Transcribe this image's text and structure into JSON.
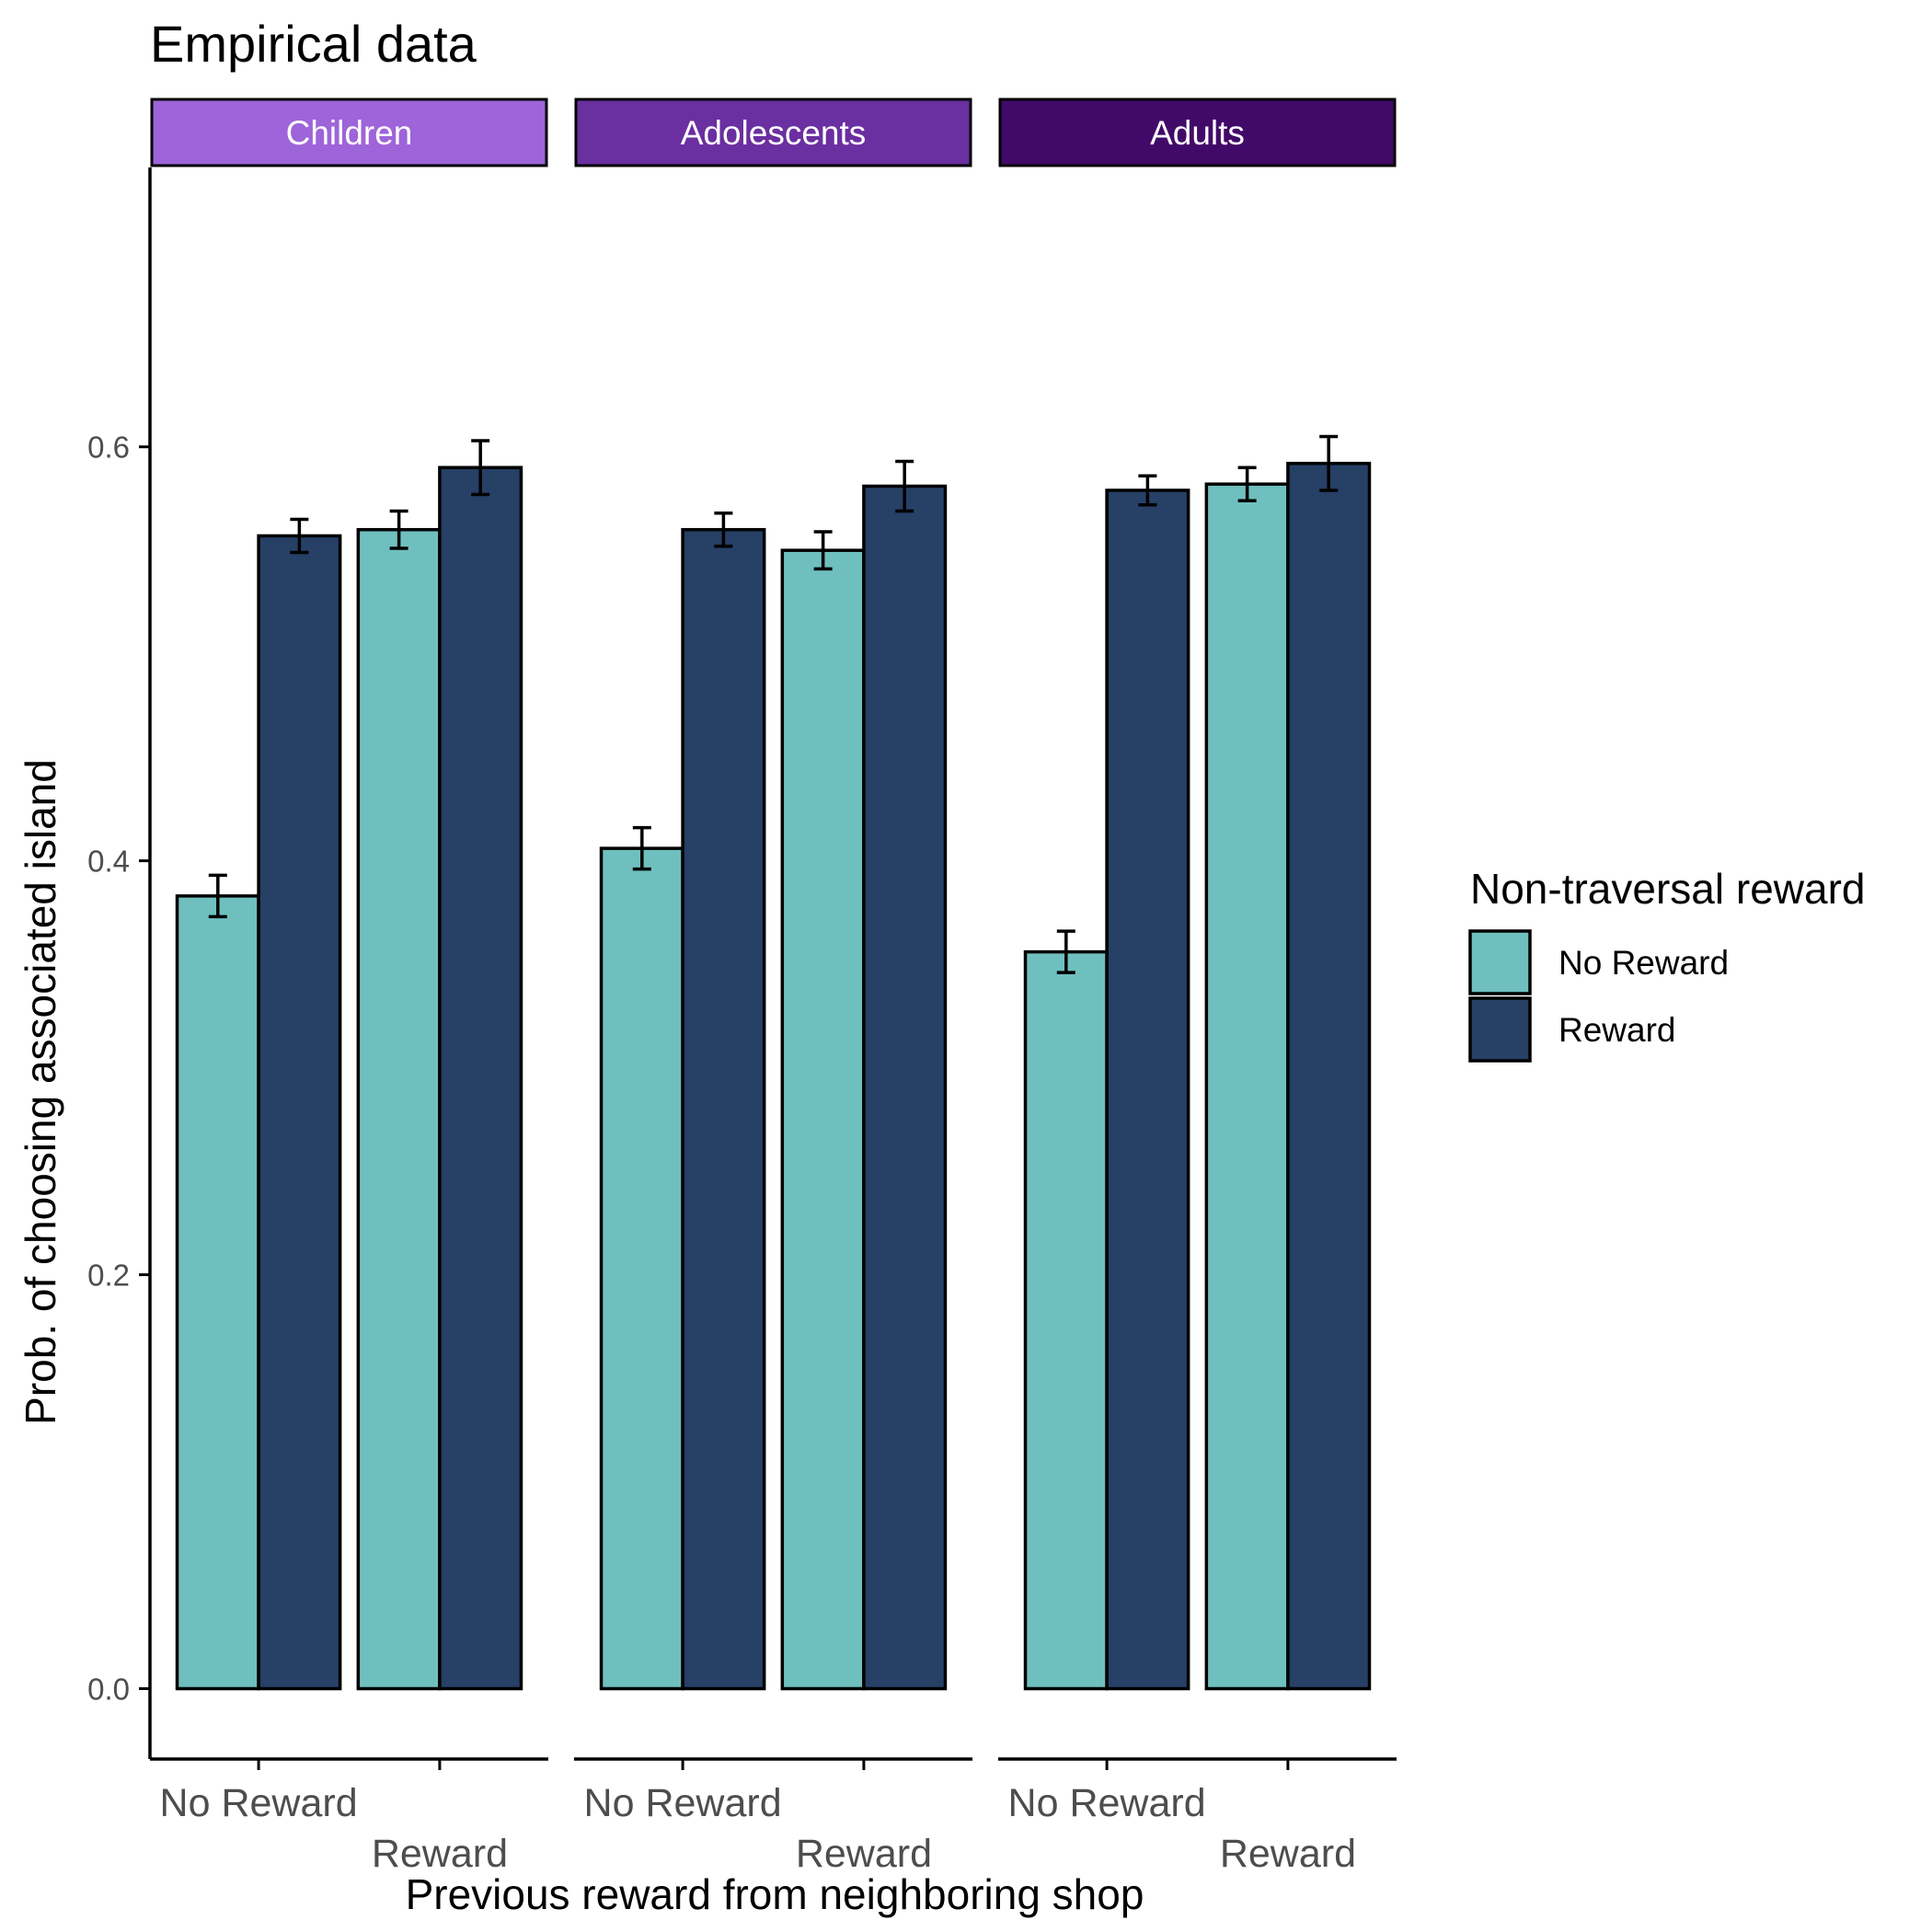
{
  "chart_data": {
    "type": "bar",
    "title": "Empirical data",
    "xlabel": "Previous reward from neighboring shop",
    "ylabel": "Prob. of choosing associated island",
    "ylim": [
      -0.034,
      0.735
    ],
    "yticks": [
      0.0,
      0.2,
      0.4,
      0.6
    ],
    "ytick_labels": [
      "0.0",
      "0.2",
      "0.4",
      "0.6"
    ],
    "categories": [
      "No Reward",
      "Reward"
    ],
    "legend": {
      "title": "Non-traversal reward",
      "position": "right",
      "entries": [
        "No Reward",
        "Reward"
      ]
    },
    "colors": {
      "No Reward": "#70bfbf",
      "Reward": "#264066"
    },
    "facets": [
      {
        "label": "Children",
        "strip_color": "#9e64d9",
        "series": [
          {
            "name": "No Reward",
            "values": [
              0.383,
              0.56
            ],
            "errors": [
              0.01,
              0.009
            ]
          },
          {
            "name": "Reward",
            "values": [
              0.557,
              0.59
            ],
            "errors": [
              0.008,
              0.013
            ]
          }
        ]
      },
      {
        "label": "Adolescents",
        "strip_color": "#6a2fa0",
        "series": [
          {
            "name": "No Reward",
            "values": [
              0.406,
              0.55
            ],
            "errors": [
              0.01,
              0.009
            ]
          },
          {
            "name": "Reward",
            "values": [
              0.56,
              0.581
            ],
            "errors": [
              0.008,
              0.012
            ]
          }
        ]
      },
      {
        "label": "Adults",
        "strip_color": "#420a68",
        "series": [
          {
            "name": "No Reward",
            "values": [
              0.356,
              0.582
            ],
            "errors": [
              0.01,
              0.008
            ]
          },
          {
            "name": "Reward",
            "values": [
              0.579,
              0.592
            ],
            "errors": [
              0.007,
              0.013
            ]
          }
        ]
      }
    ]
  }
}
